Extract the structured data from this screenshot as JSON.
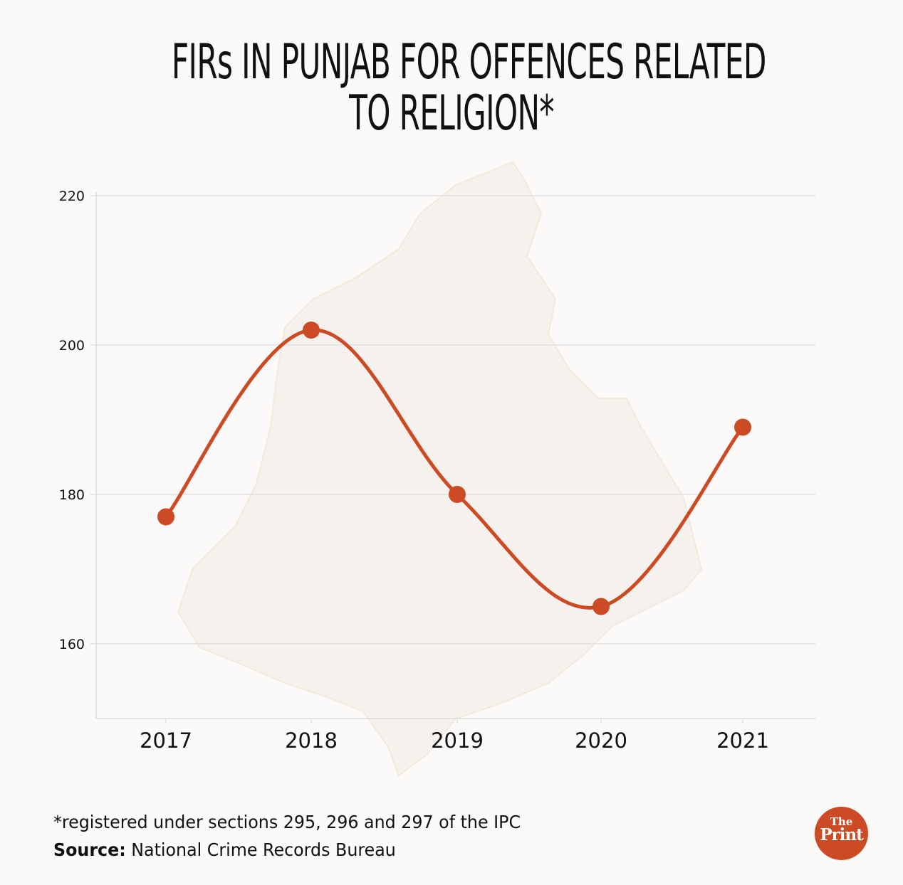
{
  "chart_data": {
    "type": "line",
    "title": "FIRs IN PUNJAB FOR OFFENCES RELATED TO RELIGION*",
    "title_lines": [
      "FIRs IN PUNJAB FOR OFFENCES RELATED",
      "TO RELIGION*"
    ],
    "xlabel": "",
    "ylabel": "",
    "categories": [
      "2017",
      "2018",
      "2019",
      "2020",
      "2021"
    ],
    "series": [
      {
        "name": "FIRs",
        "values": [
          177,
          202,
          180,
          165,
          189
        ],
        "color": "#cc4a24"
      }
    ],
    "yticks": [
      "160",
      "180",
      "200",
      "220"
    ],
    "ytick_values": [
      160,
      180,
      200,
      220
    ],
    "ylim": [
      150,
      220
    ],
    "grid": true,
    "smooth": true
  },
  "footer": {
    "note": "*registered under sections 295, 296 and 297 of the IPC",
    "source_label": "Source:",
    "source_text": " National Crime Records Bureau"
  },
  "logo": {
    "line1": "The",
    "line2": "Print",
    "color": "#cc4a24"
  },
  "colors": {
    "line": "#cc4a24",
    "grid": "#dcdcdc",
    "text": "#111111"
  }
}
